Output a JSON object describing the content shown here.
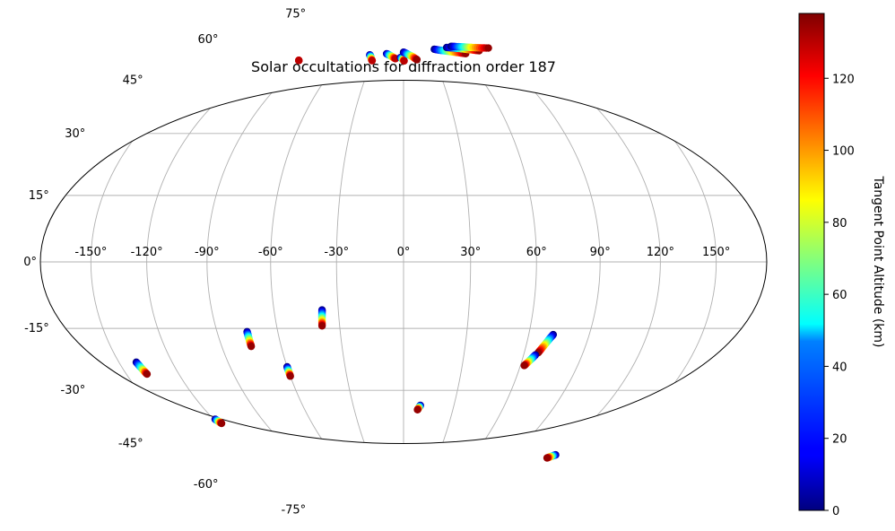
{
  "chart_data": {
    "type": "scatter",
    "projection": "hammer",
    "title": "Solar occultations for diffraction order 187",
    "lon_ticks": [
      -150,
      -120,
      -90,
      -60,
      -30,
      0,
      30,
      60,
      90,
      120,
      150
    ],
    "lat_ticks": [
      -75,
      -60,
      -45,
      -30,
      -15,
      0,
      15,
      30,
      45,
      60,
      75
    ],
    "lon_tick_labels": [
      "-150°",
      "-120°",
      "-90°",
      "-60°",
      "-30°",
      "0°",
      "30°",
      "60°",
      "90°",
      "120°",
      "150°"
    ],
    "lat_tick_labels": [
      "-75°",
      "-60°",
      "-45°",
      "-30°",
      "-15°",
      "0°",
      "15°",
      "30°",
      "45°",
      "60°",
      "75°"
    ],
    "grid": true,
    "colorbar": {
      "label": "Tangent Point Altitude (km)",
      "range": [
        0,
        138
      ],
      "ticks": [
        0,
        20,
        40,
        60,
        80,
        100,
        120
      ],
      "colormap": "jet",
      "position": "right"
    },
    "occultations": [
      {
        "lon": [
          -95,
          -95
        ],
        "lat": [
          63.5,
          63.5
        ],
        "alt": [
          120,
          130
        ]
      },
      {
        "lon": [
          -35,
          -34,
          -33,
          -32,
          -31,
          -30
        ],
        "lat": [
          69,
          68.7,
          68.3,
          67.8,
          67.3,
          66.9
        ],
        "alt": [
          0,
          20,
          45,
          70,
          100,
          130
        ]
      },
      {
        "lon": [
          -18,
          -16,
          -14,
          -12,
          -10,
          -8
        ],
        "lat": [
          69.8,
          69.5,
          69.2,
          68.8,
          68.4,
          68
        ],
        "alt": [
          0,
          25,
          50,
          75,
          100,
          130
        ]
      },
      {
        "lon": [
          -3,
          -2,
          -1,
          0,
          0.5
        ],
        "lat": [
          68.5,
          68.2,
          67.8,
          67.5,
          67.2
        ],
        "alt": [
          0,
          30,
          60,
          95,
          130
        ]
      },
      {
        "lon": [
          0,
          3,
          6,
          9,
          11,
          13
        ],
        "lat": [
          70.5,
          70,
          69.4,
          68.8,
          68.2,
          67.6
        ],
        "alt": [
          0,
          25,
          55,
          85,
          110,
          135
        ]
      },
      {
        "lon": [
          35,
          40,
          46,
          52,
          58,
          64
        ],
        "lat": [
          71.2,
          70.7,
          70.2,
          69.6,
          69,
          68.3
        ],
        "alt": [
          0,
          25,
          55,
          85,
          110,
          135
        ]
      },
      {
        "lon": [
          50,
          56,
          62,
          68,
          74,
          80
        ],
        "lat": [
          71.4,
          71,
          70.5,
          69.9,
          69.2,
          68.5
        ],
        "alt": [
          0,
          25,
          55,
          85,
          110,
          135
        ]
      },
      {
        "lon": [
          56,
          62,
          69,
          76,
          84,
          92
        ],
        "lat": [
          71.6,
          71.2,
          70.7,
          70.1,
          69.4,
          68.7
        ],
        "alt": [
          0,
          25,
          55,
          85,
          110,
          135
        ]
      },
      {
        "lon": [
          -140,
          -139.5,
          -139,
          -138.5,
          -138
        ],
        "lat": [
          -26.5,
          -27.4,
          -28.3,
          -29.2,
          -30
        ],
        "alt": [
          0,
          30,
          60,
          95,
          135
        ]
      },
      {
        "lon": [
          -119,
          -118.5,
          -118,
          -117.5
        ],
        "lat": [
          -45.5,
          -46,
          -46.5,
          -47
        ],
        "alt": [
          0,
          40,
          85,
          135
        ]
      },
      {
        "lon": [
          -75,
          -75,
          -75,
          -75,
          -75
        ],
        "lat": [
          -21,
          -22,
          -23,
          -24.3,
          -25.5
        ],
        "alt": [
          0,
          30,
          60,
          95,
          135
        ]
      },
      {
        "lon": [
          -60,
          -60,
          -60,
          -60
        ],
        "lat": [
          -32.5,
          -33.5,
          -34.5,
          -35.5
        ],
        "alt": [
          0,
          40,
          85,
          135
        ]
      },
      {
        "lon": [
          -37.5,
          -37.7,
          -37.9,
          -38.1,
          -38.3
        ],
        "lat": [
          -15,
          -16.2,
          -17.4,
          -18.7,
          -20
        ],
        "alt": [
          0,
          30,
          60,
          95,
          135
        ]
      },
      {
        "lon": [
          10,
          9.5,
          9,
          8.5
        ],
        "lat": [
          -46.5,
          -47,
          -47.5,
          -48
        ],
        "alt": [
          0,
          40,
          85,
          135
        ]
      },
      {
        "lon": [
          72,
          71,
          70,
          69,
          68,
          67
        ],
        "lat": [
          -22,
          -23,
          -24.2,
          -25.4,
          -26.6,
          -27.8
        ],
        "alt": [
          0,
          25,
          55,
          85,
          110,
          135
        ]
      },
      {
        "lon": [
          66,
          65,
          64,
          63,
          62
        ],
        "lat": [
          -28.5,
          -29.4,
          -30.3,
          -31.2,
          -32
        ],
        "alt": [
          0,
          30,
          60,
          95,
          135
        ]
      },
      {
        "lon": [
          122,
          121,
          120,
          119
        ],
        "lat": [
          -57.5,
          -58,
          -58.5,
          -59
        ],
        "alt": [
          0,
          40,
          85,
          135
        ]
      }
    ]
  }
}
